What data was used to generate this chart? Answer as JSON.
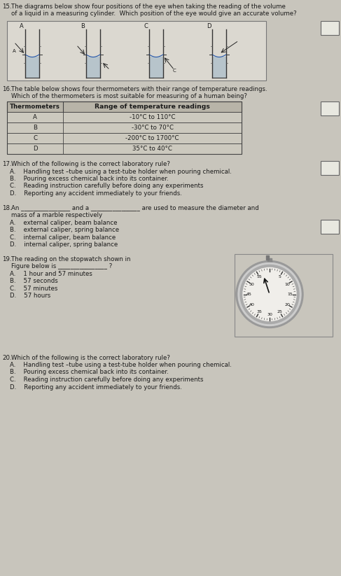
{
  "bg_color": "#c8c5bc",
  "text_color": "#1a1a1a",
  "q15_num": "15.",
  "q15_text": "The diagrams below show four positions of the eye when taking the reading of the volume\nof a liquid in a measuring cylinder.  Which position of the eye would give an accurate volume?",
  "q16_num": "16.",
  "q16_text": "The table below shows four thermometers with their range of temperature readings.\nWhich of the thermometers is most suitable for measuring of a human being?",
  "table_headers": [
    "Thermometers",
    "Range of temperature readings"
  ],
  "table_rows": [
    [
      "A",
      "-10°C to 110°C"
    ],
    [
      "B",
      "-30°C to 70°C"
    ],
    [
      "C",
      "-200°C to 1700°C"
    ],
    [
      "D",
      "35°C to 40°C"
    ]
  ],
  "q17_num": "17.",
  "q17_text": "Which of the following is the correct laboratory rule?",
  "q17_opts": [
    "A.    Handling test –tube using a test-tube holder when pouring chemical.",
    "B.    Pouring excess chemical back into its container.",
    "C.    Reading instruction carefully before doing any experiments",
    "D.    Reporting any accident immediately to your friends."
  ],
  "q18_num": "18.",
  "q18_line1": "An ________________ and a ________________ are used to measure the diameter and",
  "q18_line2": "mass of a marble respectively",
  "q18_opts": [
    "A.    external caliper, beam balance",
    "B.    external caliper, spring balance",
    "C.    internal caliper, beam balance",
    "D.    internal caliper, spring balance"
  ],
  "q19_num": "19.",
  "q19_line1": "The reading on the stopwatch shown in",
  "q19_line2": "Figure below is ________________ ?",
  "q19_opts": [
    "A.    1 hour and 57 minutes",
    "B.    57 seconds",
    "C.    57 minutes",
    "D.    57 hours"
  ],
  "q20_num": "20.",
  "q20_text": "Which of the following is the correct laboratory rule?",
  "q20_opts": [
    "A.    Handling test –tube using a test-tube holder when pouring chemical.",
    "B.    Pouring excess chemical back into its container.",
    "C.    Reading instruction carefully before doing any experiments",
    "D.    Reporting any accident immediately to your friends."
  ],
  "answer_box_color": "#e8e8e0",
  "cylinder_labels": [
    "A",
    "B",
    "C",
    "D"
  ]
}
